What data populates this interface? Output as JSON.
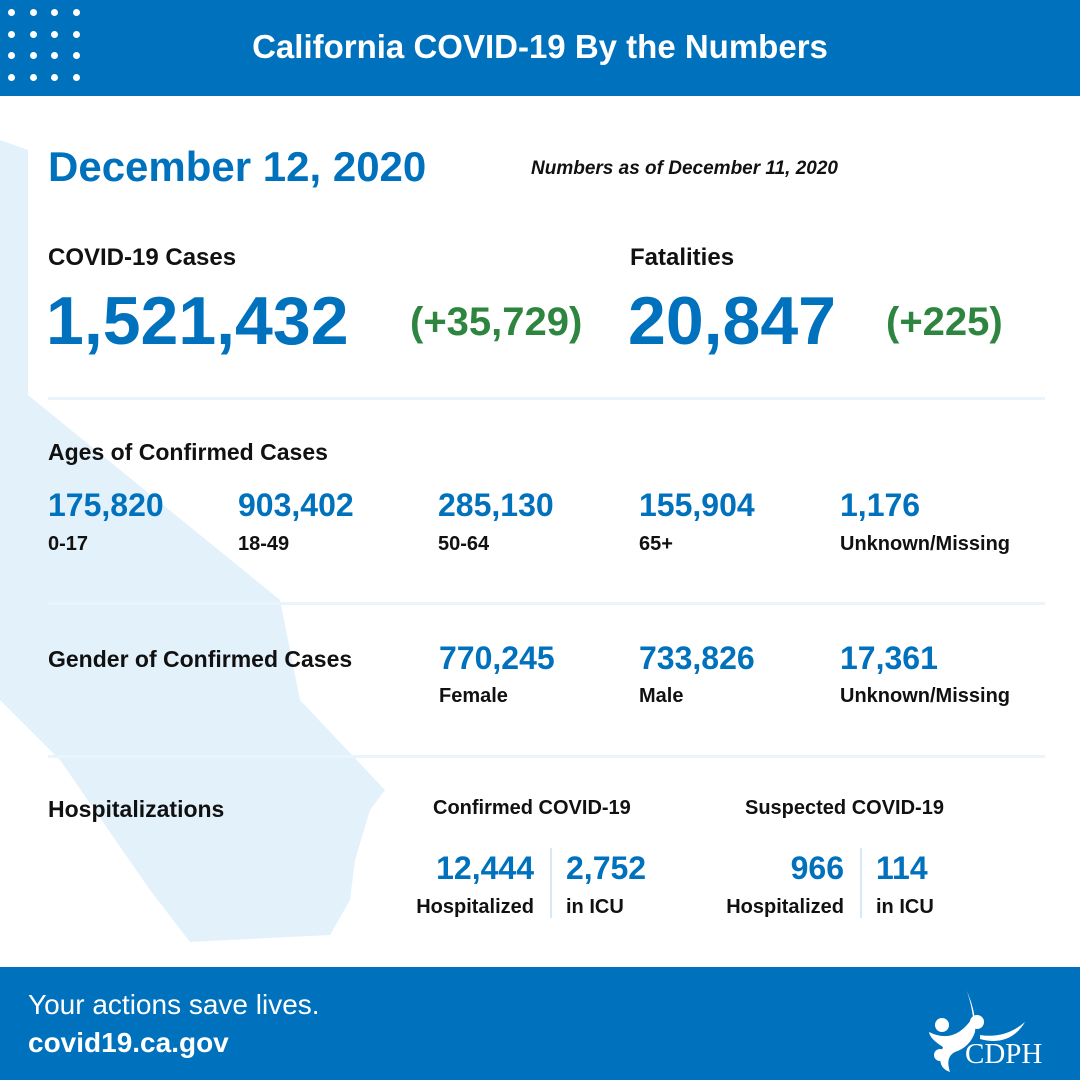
{
  "header": {
    "title": "California COVID-19 By the Numbers"
  },
  "date": "December 12, 2020",
  "as_of": "Numbers as of December 11, 2020",
  "cases": {
    "label": "COVID-19 Cases",
    "value": "1,521,432",
    "delta": "(+35,729)"
  },
  "fatalities": {
    "label": "Fatalities",
    "value": "20,847",
    "delta": "(+225)"
  },
  "ages": {
    "label": "Ages of Confirmed Cases",
    "items": [
      {
        "value": "175,820",
        "label": "0-17"
      },
      {
        "value": "903,402",
        "label": "18-49"
      },
      {
        "value": "285,130",
        "label": "50-64"
      },
      {
        "value": "155,904",
        "label": "65+"
      },
      {
        "value": "1,176",
        "label": "Unknown/Missing"
      }
    ]
  },
  "gender": {
    "label": "Gender of Confirmed Cases",
    "items": [
      {
        "value": "770,245",
        "label": "Female"
      },
      {
        "value": "733,826",
        "label": "Male"
      },
      {
        "value": "17,361",
        "label": "Unknown/Missing"
      }
    ]
  },
  "hospitalizations": {
    "label": "Hospitalizations",
    "confirmed": {
      "heading": "Confirmed COVID-19",
      "hospitalized": "12,444",
      "hospitalized_label": "Hospitalized",
      "icu": "2,752",
      "icu_label": "in ICU"
    },
    "suspected": {
      "heading": "Suspected COVID-19",
      "hospitalized": "966",
      "hospitalized_label": "Hospitalized",
      "icu": "114",
      "icu_label": "in ICU"
    }
  },
  "footer": {
    "tagline": "Your actions save lives.",
    "url": "covid19.ca.gov",
    "logo_text": "CDPH"
  },
  "colors": {
    "brand_blue": "#0071bc",
    "delta_green": "#2e8540",
    "map_fill": "#e3f1fb"
  }
}
